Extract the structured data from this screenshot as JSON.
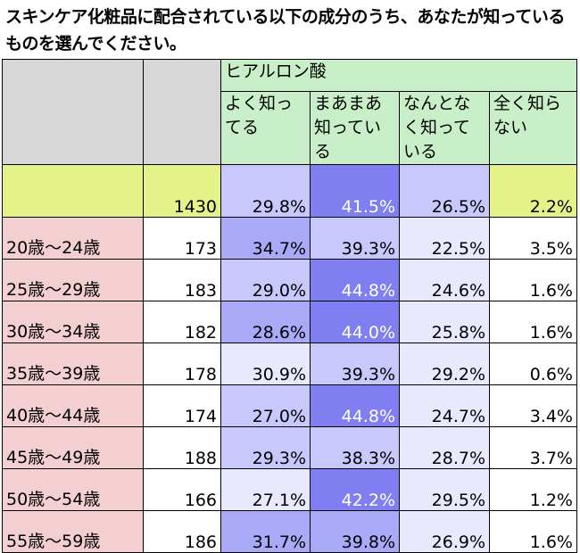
{
  "title": "スキンケア化粧品に配合されている以下の成分のうち、あなたが知っているものを選んでください。",
  "ingredient": "ヒアルロン酸",
  "columns": [
    "よく知ってる",
    "まあまあ知っている",
    "なんとなく知っている",
    "全く知らない"
  ],
  "total": {
    "n": "1430",
    "values": [
      "29.8%",
      "41.5%",
      "26.5%",
      "2.2%"
    ]
  },
  "rows": [
    {
      "label": "20歳～24歳",
      "n": "173",
      "values": [
        "34.7%",
        "39.3%",
        "22.5%",
        "3.5%"
      ]
    },
    {
      "label": "25歳～29歳",
      "n": "183",
      "values": [
        "29.0%",
        "44.8%",
        "24.6%",
        "1.6%"
      ]
    },
    {
      "label": "30歳～34歳",
      "n": "182",
      "values": [
        "28.6%",
        "44.0%",
        "25.8%",
        "1.6%"
      ]
    },
    {
      "label": "35歳～39歳",
      "n": "178",
      "values": [
        "30.9%",
        "39.3%",
        "29.2%",
        "0.6%"
      ]
    },
    {
      "label": "40歳～44歳",
      "n": "174",
      "values": [
        "27.0%",
        "44.8%",
        "24.7%",
        "3.4%"
      ]
    },
    {
      "label": "45歳～49歳",
      "n": "188",
      "values": [
        "29.3%",
        "38.3%",
        "28.7%",
        "3.7%"
      ]
    },
    {
      "label": "50歳～54歳",
      "n": "166",
      "values": [
        "27.1%",
        "42.2%",
        "29.5%",
        "1.2%"
      ]
    },
    {
      "label": "55歳～59歳",
      "n": "186",
      "values": [
        "31.7%",
        "39.8%",
        "26.9%",
        "1.6%"
      ]
    }
  ]
}
